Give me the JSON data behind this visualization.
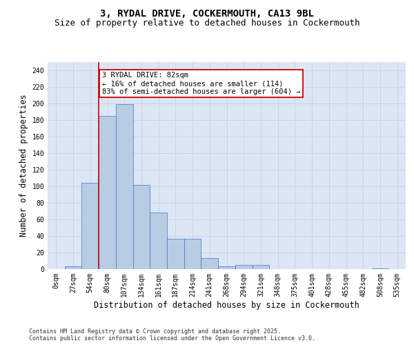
{
  "title_line1": "3, RYDAL DRIVE, COCKERMOUTH, CA13 9BL",
  "title_line2": "Size of property relative to detached houses in Cockermouth",
  "xlabel": "Distribution of detached houses by size in Cockermouth",
  "ylabel": "Number of detached properties",
  "bin_labels": [
    "0sqm",
    "27sqm",
    "54sqm",
    "80sqm",
    "107sqm",
    "134sqm",
    "161sqm",
    "187sqm",
    "214sqm",
    "241sqm",
    "268sqm",
    "294sqm",
    "321sqm",
    "348sqm",
    "375sqm",
    "401sqm",
    "428sqm",
    "455sqm",
    "482sqm",
    "508sqm",
    "535sqm"
  ],
  "bar_values": [
    0,
    3,
    104,
    185,
    199,
    102,
    68,
    37,
    37,
    13,
    3,
    5,
    5,
    0,
    0,
    0,
    0,
    0,
    0,
    1,
    0
  ],
  "bar_color": "#b8cce4",
  "bar_edge_color": "#4472c4",
  "vline_x_index": 3,
  "vline_color": "#cc0000",
  "annotation_text": "3 RYDAL DRIVE: 82sqm\n← 16% of detached houses are smaller (114)\n83% of semi-detached houses are larger (604) →",
  "annotation_box_color": "#cc0000",
  "ylim": [
    0,
    250
  ],
  "yticks": [
    0,
    20,
    40,
    60,
    80,
    100,
    120,
    140,
    160,
    180,
    200,
    220,
    240
  ],
  "grid_color": "#c8d4e8",
  "background_color": "#dce6f5",
  "footer_text": "Contains HM Land Registry data © Crown copyright and database right 2025.\nContains public sector information licensed under the Open Government Licence v3.0.",
  "title_fontsize": 10,
  "subtitle_fontsize": 9,
  "axis_label_fontsize": 8.5,
  "tick_fontsize": 7,
  "annotation_fontsize": 7.5,
  "footer_fontsize": 6
}
